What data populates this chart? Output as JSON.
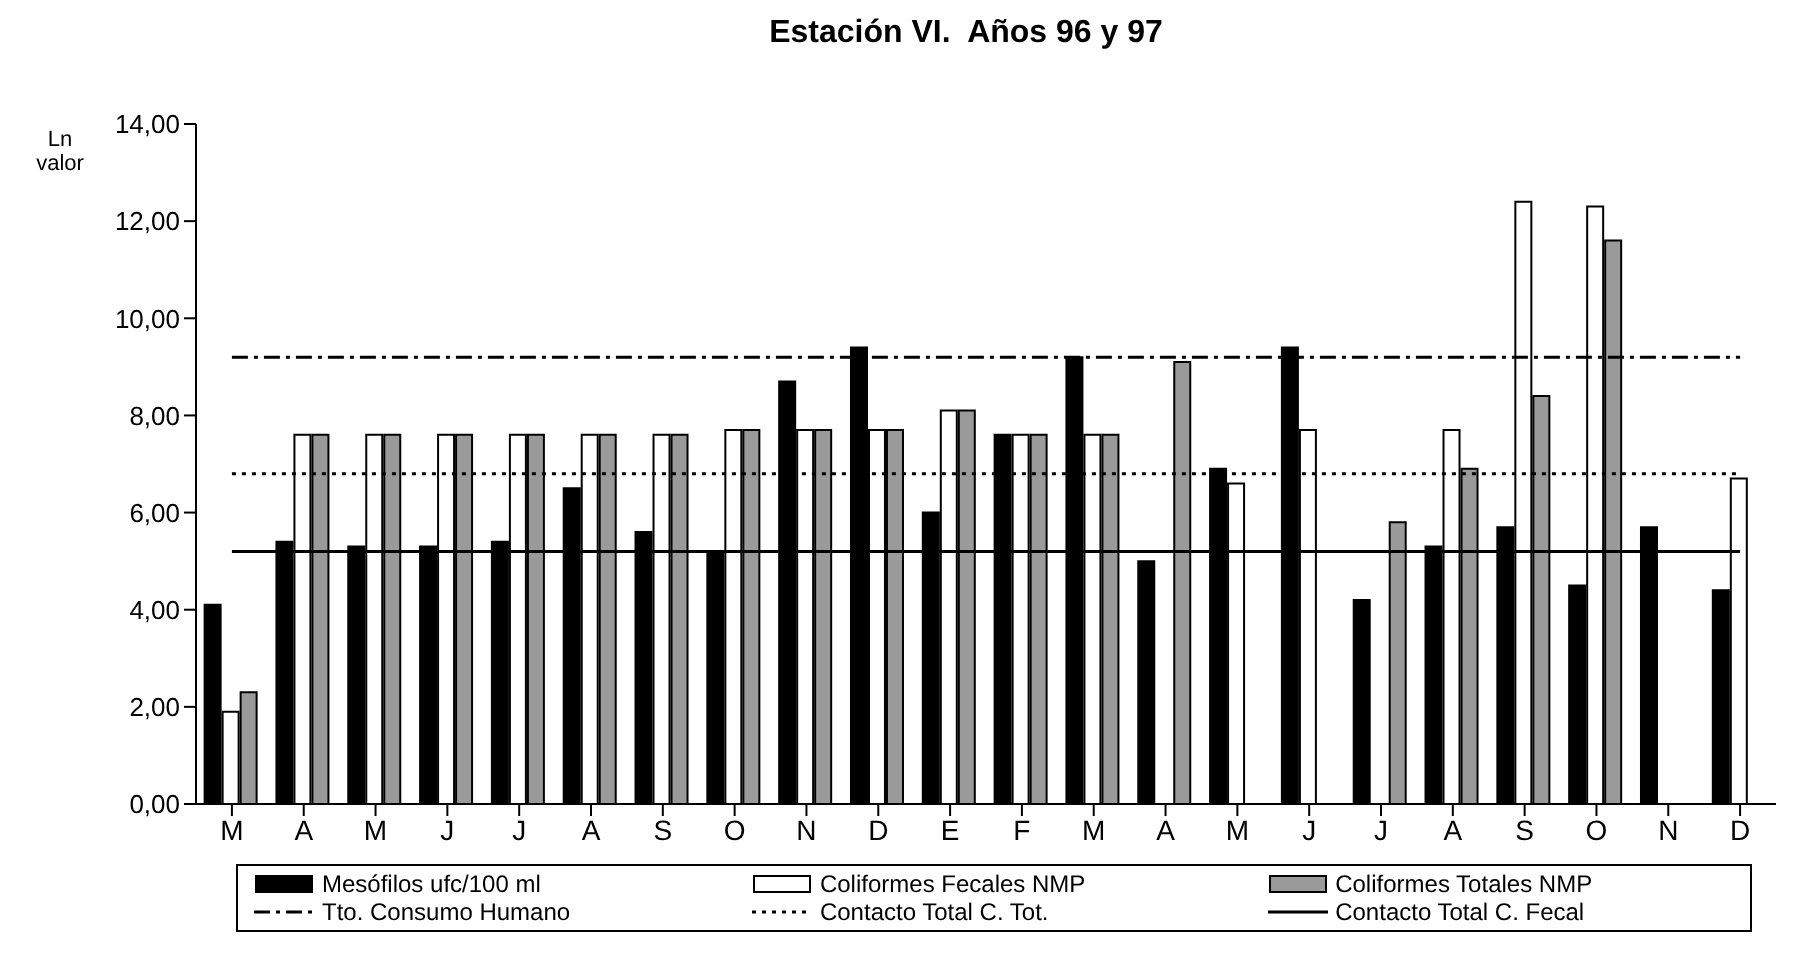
{
  "chart_data": {
    "type": "bar",
    "title": "Estación VI.  Años 96 y 97",
    "ylabel": "Ln valor",
    "categories": [
      "M",
      "A",
      "M",
      "J",
      "J",
      "A",
      "S",
      "O",
      "N",
      "D",
      "E",
      "F",
      "M",
      "A",
      "M",
      "J",
      "J",
      "A",
      "S",
      "O",
      "N",
      "D"
    ],
    "series": [
      {
        "name": "Mesófilos ufc/100 ml",
        "color": "#000000",
        "values": [
          4.1,
          5.4,
          5.3,
          5.3,
          5.4,
          6.5,
          5.6,
          5.2,
          8.7,
          9.4,
          6.0,
          7.6,
          9.2,
          5.0,
          6.9,
          9.4,
          4.2,
          5.3,
          5.7,
          4.5,
          5.7,
          4.4
        ]
      },
      {
        "name": "Coliformes Fecales NMP",
        "color": "#ffffff",
        "values": [
          1.9,
          7.6,
          7.6,
          7.6,
          7.6,
          7.6,
          7.6,
          7.7,
          7.7,
          7.7,
          8.1,
          7.6,
          7.6,
          null,
          6.6,
          7.7,
          null,
          7.7,
          12.4,
          12.3,
          null,
          6.7
        ]
      },
      {
        "name": "Coliformes Totales NMP",
        "color": "#9a9a9a",
        "values": [
          2.3,
          7.6,
          7.6,
          7.6,
          7.6,
          7.6,
          7.6,
          7.7,
          7.7,
          7.7,
          8.1,
          7.6,
          7.6,
          9.1,
          null,
          null,
          5.8,
          6.9,
          8.4,
          11.6,
          null,
          null
        ]
      },
      {
        "name": "Tto. Consumo Humano",
        "type": "line",
        "color": "#000000",
        "line_style": "dashed",
        "values": [
          9.2,
          9.2,
          9.2,
          9.2,
          9.2,
          9.2,
          9.2,
          9.2,
          9.2,
          9.2,
          9.2,
          9.2,
          9.2,
          9.2,
          9.2,
          9.2,
          9.2,
          9.2,
          9.2,
          9.2,
          9.2,
          9.2
        ]
      },
      {
        "name": "Contacto Total C. Tot.",
        "type": "line",
        "color": "#000000",
        "line_style": "dotted",
        "values": [
          6.8,
          6.8,
          6.8,
          6.8,
          6.8,
          6.8,
          6.8,
          6.8,
          6.8,
          6.8,
          6.8,
          6.8,
          6.8,
          6.8,
          6.8,
          6.8,
          6.8,
          6.8,
          6.8,
          6.8,
          6.8,
          6.8
        ]
      },
      {
        "name": "Contacto Total C. Fecal",
        "type": "line",
        "color": "#000000",
        "line_style": "solid",
        "values": [
          5.2,
          5.2,
          5.2,
          5.2,
          5.2,
          5.2,
          5.2,
          5.2,
          5.2,
          5.2,
          5.2,
          5.2,
          5.2,
          5.2,
          5.2,
          5.2,
          5.2,
          5.2,
          5.2,
          5.2,
          5.2,
          5.2
        ]
      }
    ],
    "ylim": [
      0,
      14
    ],
    "yticks": [
      {
        "value": 0,
        "label": "0,00"
      },
      {
        "value": 2,
        "label": "2,00"
      },
      {
        "value": 4,
        "label": "4,00"
      },
      {
        "value": 6,
        "label": "6,00"
      },
      {
        "value": 8,
        "label": "8,00"
      },
      {
        "value": 10,
        "label": "10,00"
      },
      {
        "value": 12,
        "label": "12,00"
      },
      {
        "value": 14,
        "label": "14,00"
      }
    ],
    "legend": "bottom",
    "grid": false
  }
}
